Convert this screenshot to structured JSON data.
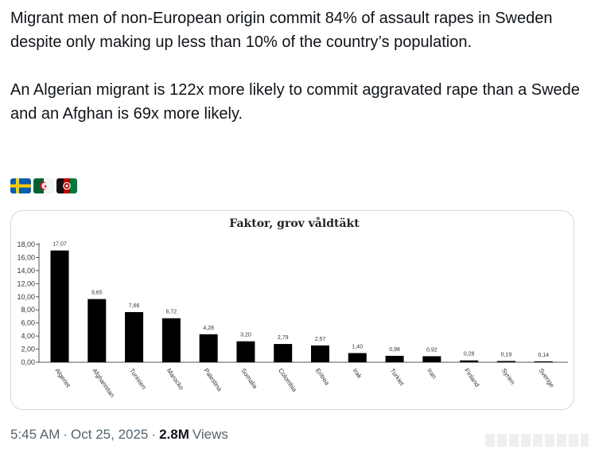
{
  "tweet": {
    "paragraph_1": "Migrant men of non-European origin commit 84% of assault rapes in Sweden despite only making up less than 10% of the country’s population.",
    "paragraph_2": "An Algerian migrant is 122x more likely to commit aggravated rape than a Swede and an Afghan is 69x more likely.",
    "flags": [
      "sweden-flag",
      "algeria-flag",
      "afghanistan-flag"
    ]
  },
  "chart_data": {
    "type": "bar",
    "title": "Faktor, grov våldtäkt",
    "categories": [
      "Algeriet",
      "Afghanistan",
      "Tunisien",
      "Marocko",
      "Palestina",
      "Somalia",
      "Colombia",
      "Eritrea",
      "Irak",
      "Turkiet",
      "Iran",
      "Finland",
      "Syrien",
      "Sverige"
    ],
    "values": [
      17.07,
      9.65,
      7.66,
      6.72,
      4.28,
      3.2,
      2.79,
      2.57,
      1.4,
      0.98,
      0.92,
      0.28,
      0.19,
      0.14
    ],
    "value_labels": [
      "17,07",
      "9,65",
      "7,66",
      "6,72",
      "4,28",
      "3,20",
      "2,79",
      "2,57",
      "1,40",
      "0,98",
      "0,92",
      "0,28",
      "0,19",
      "0,14"
    ],
    "yticks": [
      "0,00",
      "2,00",
      "4,00",
      "6,00",
      "8,00",
      "10,00",
      "12,00",
      "14,00",
      "16,00",
      "18,00"
    ],
    "ylim": [
      0,
      18
    ],
    "xlabel": "",
    "ylabel": "",
    "bar_color": "#000000",
    "grid": false
  },
  "meta": {
    "time": "5:45 AM",
    "date": "Oct 25, 2025",
    "separator": "·",
    "views_count": "2.8M",
    "views_label": "Views"
  }
}
